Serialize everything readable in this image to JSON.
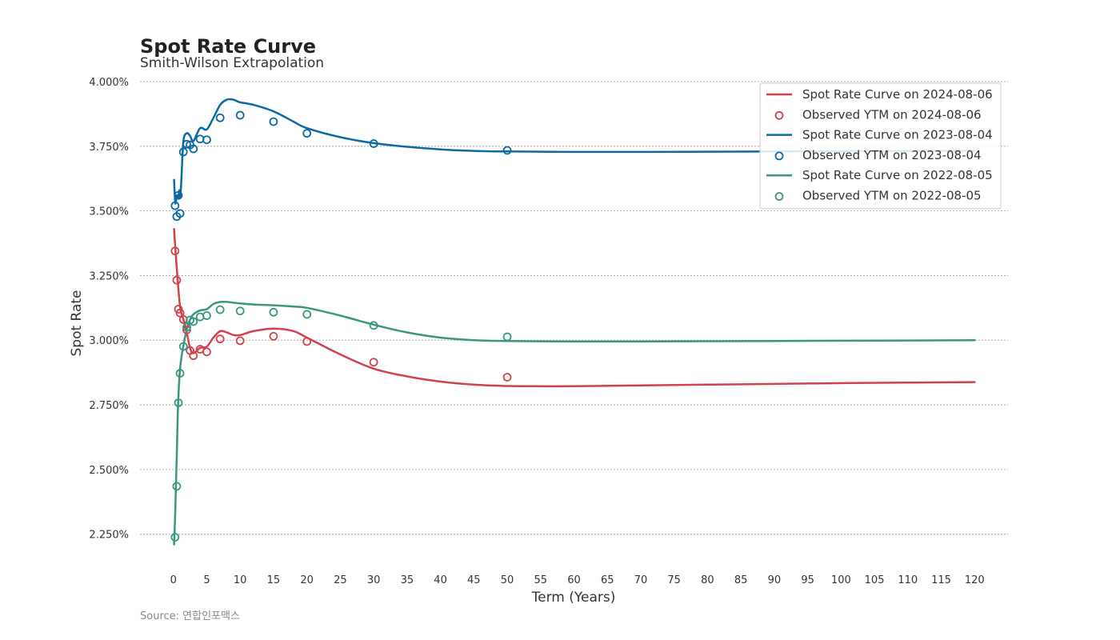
{
  "chart_data": {
    "type": "line",
    "title": "Spot Rate Curve",
    "subtitle": "Smith-Wilson Extrapolation",
    "xlabel": "Term (Years)",
    "ylabel": "Spot Rate",
    "xlim": [
      -5,
      125
    ],
    "ylim": [
      2.15,
      4.0
    ],
    "xticks": [
      0,
      5,
      10,
      15,
      20,
      25,
      30,
      35,
      40,
      45,
      50,
      55,
      60,
      65,
      70,
      75,
      80,
      85,
      90,
      95,
      100,
      105,
      110,
      115,
      120
    ],
    "yticks": [
      2.25,
      2.5,
      2.75,
      3.0,
      3.25,
      3.5,
      3.75,
      4.0
    ],
    "ytick_labels": [
      "2.250%",
      "2.500%",
      "2.750%",
      "3.000%",
      "3.250%",
      "3.500%",
      "3.750%",
      "4.000%"
    ],
    "grid": "horizontal dashed",
    "legend_position": "top-right",
    "source": "Source: 연합인포맥스",
    "series": [
      {
        "name": "Spot Rate Curve on 2024-08-06",
        "kind": "line",
        "color": "#d1434b",
        "x": [
          0.1,
          0.5,
          1,
          1.5,
          2,
          2.5,
          3,
          4,
          5,
          6,
          7,
          8,
          9,
          10,
          12,
          15,
          18,
          20,
          25,
          30,
          35,
          40,
          45,
          50,
          55,
          60,
          70,
          80,
          90,
          100,
          110,
          120
        ],
        "y": [
          3.43,
          3.28,
          3.13,
          3.08,
          3.03,
          2.97,
          2.95,
          2.97,
          2.975,
          3.01,
          3.035,
          3.03,
          3.02,
          3.02,
          3.035,
          3.045,
          3.035,
          3.01,
          2.945,
          2.89,
          2.86,
          2.84,
          2.828,
          2.823,
          2.822,
          2.822,
          2.825,
          2.828,
          2.831,
          2.834,
          2.836,
          2.838
        ]
      },
      {
        "name": "Observed YTM on 2024-08-06",
        "kind": "scatter",
        "color": "#d1434b",
        "x": [
          0.25,
          0.5,
          0.75,
          1,
          1.5,
          2,
          2.5,
          3,
          4,
          5,
          7,
          10,
          15,
          20,
          30,
          50
        ],
        "y": [
          3.345,
          3.232,
          3.12,
          3.105,
          3.08,
          3.04,
          2.96,
          2.94,
          2.965,
          2.955,
          3.005,
          2.998,
          3.015,
          2.995,
          2.915,
          2.857
        ]
      },
      {
        "name": "Spot Rate Curve on 2023-08-04",
        "kind": "line",
        "color": "#0b6aa2",
        "x": [
          0.1,
          0.3,
          0.5,
          0.7,
          0.9,
          1,
          1.2,
          1.5,
          2,
          2.5,
          3,
          4,
          5,
          6,
          7,
          8,
          9,
          10,
          12,
          15,
          18,
          20,
          25,
          30,
          35,
          40,
          45,
          50,
          60,
          70,
          80,
          90,
          100,
          110,
          120
        ],
        "y": [
          3.62,
          3.53,
          3.56,
          3.55,
          3.58,
          3.55,
          3.62,
          3.77,
          3.8,
          3.79,
          3.77,
          3.82,
          3.815,
          3.86,
          3.91,
          3.93,
          3.93,
          3.92,
          3.91,
          3.885,
          3.845,
          3.82,
          3.785,
          3.762,
          3.748,
          3.738,
          3.732,
          3.73,
          3.728,
          3.728,
          3.729,
          3.73,
          3.731,
          3.732,
          3.733
        ]
      },
      {
        "name": "Observed YTM on 2023-08-04",
        "kind": "scatter",
        "color": "#0b6aa2",
        "x": [
          0.25,
          0.5,
          0.75,
          1,
          1.5,
          2,
          2.5,
          3,
          4,
          5,
          7,
          10,
          15,
          20,
          30,
          50
        ],
        "y": [
          3.52,
          3.478,
          3.56,
          3.49,
          3.728,
          3.758,
          3.755,
          3.74,
          3.778,
          3.775,
          3.86,
          3.87,
          3.845,
          3.8,
          3.76,
          3.734
        ]
      },
      {
        "name": "Spot Rate Curve on 2022-08-05",
        "kind": "line",
        "color": "#3a9680",
        "x": [
          0.1,
          0.3,
          0.5,
          0.7,
          1,
          1.5,
          2,
          2.5,
          3,
          4,
          5,
          6,
          7,
          8,
          10,
          12,
          15,
          18,
          20,
          25,
          30,
          35,
          40,
          45,
          50,
          60,
          70,
          80,
          90,
          100,
          110,
          120
        ],
        "y": [
          2.21,
          2.35,
          2.55,
          2.75,
          2.89,
          2.98,
          3.04,
          3.08,
          3.1,
          3.115,
          3.12,
          3.14,
          3.148,
          3.148,
          3.142,
          3.138,
          3.135,
          3.13,
          3.125,
          3.095,
          3.06,
          3.03,
          3.01,
          3.0,
          2.997,
          2.995,
          2.995,
          2.996,
          2.997,
          2.998,
          2.999,
          3.0
        ]
      },
      {
        "name": "Observed YTM on 2022-08-05",
        "kind": "scatter",
        "color": "#3a9680",
        "x": [
          0.25,
          0.5,
          0.75,
          1,
          1.5,
          2,
          2.5,
          3,
          4,
          5,
          7,
          10,
          15,
          20,
          30,
          50
        ],
        "y": [
          2.238,
          2.435,
          2.758,
          2.872,
          2.976,
          3.05,
          3.078,
          3.072,
          3.09,
          3.095,
          3.118,
          3.113,
          3.108,
          3.1,
          3.057,
          3.013
        ]
      }
    ]
  }
}
